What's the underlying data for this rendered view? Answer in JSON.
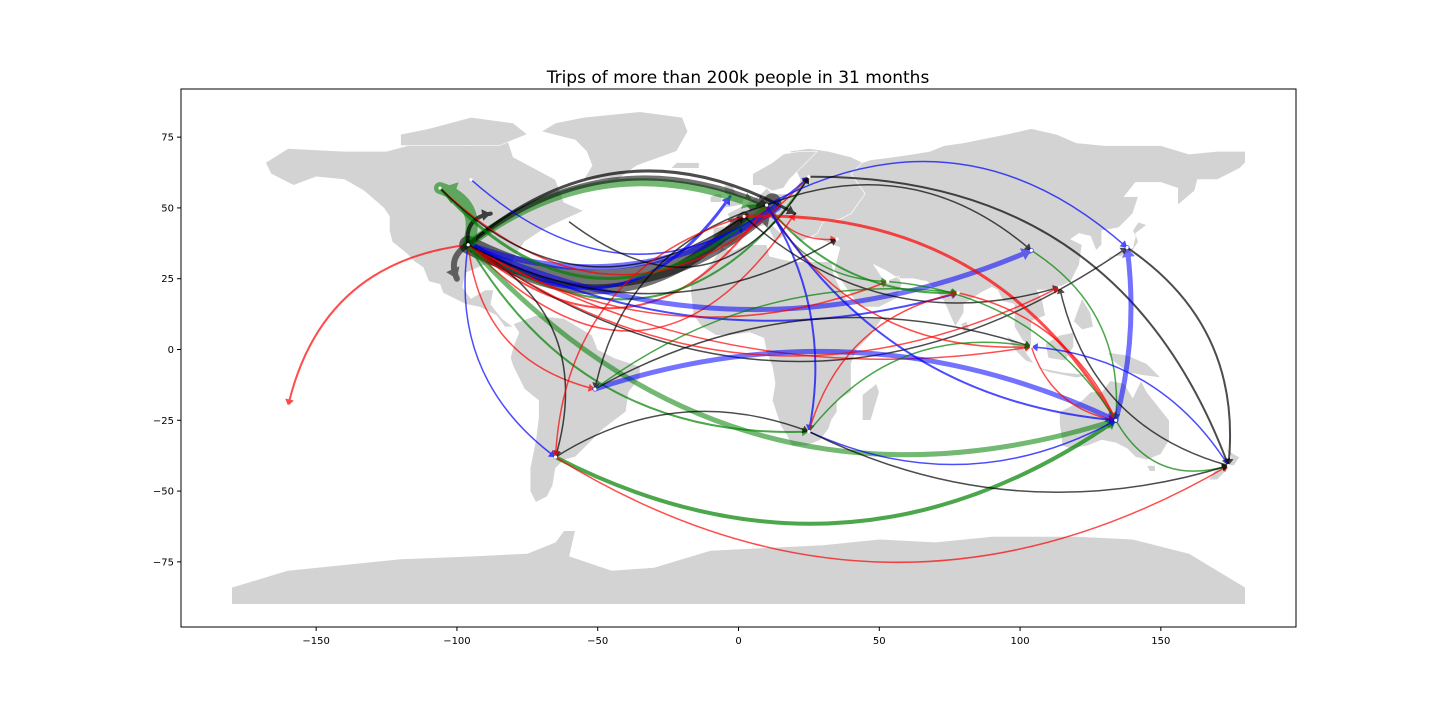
{
  "chart_data": {
    "type": "map-flow",
    "title": "Trips of more than 200k people in 31 months",
    "xlabel": "",
    "ylabel": "",
    "xlim": [
      -198,
      198
    ],
    "ylim": [
      -98,
      92
    ],
    "x_ticks": [
      -150,
      -100,
      -50,
      0,
      50,
      100,
      150
    ],
    "y_ticks": [
      -75,
      -50,
      -25,
      0,
      25,
      50,
      75
    ],
    "grid": false,
    "land_color": "#d3d3d3",
    "series_colors": [
      "#ff0000",
      "#0000ff",
      "#008000",
      "#000000"
    ],
    "hubs": [
      {
        "lon": -96,
        "lat": 37
      },
      {
        "lon": 10,
        "lat": 51
      },
      {
        "lon": 2,
        "lat": 47
      },
      {
        "lon": 134,
        "lat": -25
      },
      {
        "lon": 174,
        "lat": -41
      },
      {
        "lon": 138,
        "lat": 36
      },
      {
        "lon": 104,
        "lat": 35
      },
      {
        "lon": 104,
        "lat": 1
      },
      {
        "lon": 78,
        "lat": 20
      },
      {
        "lon": 25,
        "lat": -29
      },
      {
        "lon": -51,
        "lat": -14
      },
      {
        "lon": -65,
        "lat": -38
      },
      {
        "lon": -160,
        "lat": -20
      },
      {
        "lon": -106,
        "lat": 57
      },
      {
        "lon": 53,
        "lat": 24
      },
      {
        "lon": 35,
        "lat": 39
      },
      {
        "lon": 25,
        "lat": 61
      },
      {
        "lon": 114,
        "lat": 22
      },
      {
        "lon": -95,
        "lat": 60
      }
    ],
    "flows": [
      {
        "from": [
          -96,
          37
        ],
        "to": [
          12,
          52
        ],
        "color": "#000000",
        "width": 18,
        "bend": 0.35
      },
      {
        "from": [
          -96,
          37
        ],
        "to": [
          2,
          47
        ],
        "color": "#000000",
        "width": 10,
        "bend": 0.42
      },
      {
        "from": [
          -96,
          37
        ],
        "to": [
          14,
          50
        ],
        "color": "#0000ff",
        "width": 6,
        "bend": 0.25
      },
      {
        "from": [
          -96,
          37
        ],
        "to": [
          -3,
          54
        ],
        "color": "#0000ff",
        "width": 3,
        "bend": 0.5
      },
      {
        "from": [
          -96,
          37
        ],
        "to": [
          10,
          51
        ],
        "color": "#ff0000",
        "width": 2,
        "bend": 0.55
      },
      {
        "from": [
          -96,
          37
        ],
        "to": [
          25,
          61
        ],
        "color": "#008000",
        "width": 2,
        "bend": 0.5
      },
      {
        "from": [
          -96,
          37
        ],
        "to": [
          20,
          48
        ],
        "color": "#ff0000",
        "width": 1.5,
        "bend": 0.62
      },
      {
        "from": [
          -96,
          37
        ],
        "to": [
          6,
          51
        ],
        "color": "#008000",
        "width": 8,
        "bend": -0.28
      },
      {
        "from": [
          -96,
          37
        ],
        "to": [
          10,
          51
        ],
        "color": "#000000",
        "width": 5,
        "bend": -0.3
      },
      {
        "from": [
          -96,
          37
        ],
        "to": [
          20,
          48
        ],
        "color": "#000000",
        "width": 3,
        "bend": -0.35
      },
      {
        "from": [
          -96,
          37
        ],
        "to": [
          134,
          -25
        ],
        "color": "#008000",
        "width": 5,
        "bend": 0.32
      },
      {
        "from": [
          -96,
          37
        ],
        "to": [
          104,
          35
        ],
        "color": "#0000ff",
        "width": 5,
        "bend": 0.22
      },
      {
        "from": [
          -96,
          37
        ],
        "to": [
          78,
          20
        ],
        "color": "#0000ff",
        "width": 2,
        "bend": 0.2
      },
      {
        "from": [
          -96,
          37
        ],
        "to": [
          104,
          1
        ],
        "color": "#ff0000",
        "width": 1.5,
        "bend": 0.18
      },
      {
        "from": [
          -96,
          37
        ],
        "to": [
          25,
          -29
        ],
        "color": "#008000",
        "width": 2,
        "bend": 0.3
      },
      {
        "from": [
          -96,
          37
        ],
        "to": [
          -51,
          -14
        ],
        "color": "#ff0000",
        "width": 1.5,
        "bend": 0.35
      },
      {
        "from": [
          -96,
          37
        ],
        "to": [
          -65,
          -38
        ],
        "color": "#0000ff",
        "width": 1.5,
        "bend": 0.3
      },
      {
        "from": [
          -96,
          37
        ],
        "to": [
          -65,
          -38
        ],
        "color": "#000000",
        "width": 1.5,
        "bend": -0.4
      },
      {
        "from": [
          -96,
          37
        ],
        "to": [
          53,
          24
        ],
        "color": "#ff0000",
        "width": 1.5,
        "bend": 0.25
      },
      {
        "from": [
          -96,
          37
        ],
        "to": [
          138,
          36
        ],
        "color": "#000000",
        "width": 1.5,
        "bend": 0.35
      },
      {
        "from": [
          -96,
          37
        ],
        "to": [
          -160,
          -20
        ],
        "color": "#ff0000",
        "width": 2,
        "bend": 0.35
      },
      {
        "from": [
          -96,
          37
        ],
        "to": [
          -106,
          57
        ],
        "color": "#008000",
        "width": 12,
        "bend": 0.5
      },
      {
        "from": [
          -96,
          37
        ],
        "to": [
          -100,
          25
        ],
        "color": "#000000",
        "width": 6,
        "bend": 0.45
      },
      {
        "from": [
          -96,
          37
        ],
        "to": [
          -88,
          48
        ],
        "color": "#000000",
        "width": 4,
        "bend": -0.5
      },
      {
        "from": [
          -106,
          57
        ],
        "to": [
          10,
          51
        ],
        "color": "#008000",
        "width": 3,
        "bend": 0.5
      },
      {
        "from": [
          -106,
          57
        ],
        "to": [
          25,
          61
        ],
        "color": "#ff0000",
        "width": 1.5,
        "bend": 0.5
      },
      {
        "from": [
          -106,
          57
        ],
        "to": [
          2,
          47
        ],
        "color": "#000000",
        "width": 1.5,
        "bend": 0.42
      },
      {
        "from": [
          -95,
          60
        ],
        "to": [
          25,
          61
        ],
        "color": "#0000ff",
        "width": 1.5,
        "bend": 0.45
      },
      {
        "from": [
          -60,
          45
        ],
        "to": [
          25,
          61
        ],
        "color": "#000000",
        "width": 1.5,
        "bend": 0.55
      },
      {
        "from": [
          2,
          47
        ],
        "to": [
          134,
          -25
        ],
        "color": "#ff0000",
        "width": 3,
        "bend": -0.3
      },
      {
        "from": [
          10,
          51
        ],
        "to": [
          138,
          36
        ],
        "color": "#0000ff",
        "width": 1.5,
        "bend": -0.35
      },
      {
        "from": [
          10,
          51
        ],
        "to": [
          104,
          35
        ],
        "color": "#000000",
        "width": 1.5,
        "bend": -0.3
      },
      {
        "from": [
          25,
          61
        ],
        "to": [
          174,
          -41
        ],
        "color": "#000000",
        "width": 2,
        "bend": -0.35
      },
      {
        "from": [
          10,
          51
        ],
        "to": [
          78,
          20
        ],
        "color": "#008000",
        "width": 2,
        "bend": 0.25
      },
      {
        "from": [
          10,
          51
        ],
        "to": [
          53,
          24
        ],
        "color": "#008000",
        "width": 1.5,
        "bend": 0.3
      },
      {
        "from": [
          10,
          51
        ],
        "to": [
          25,
          -29
        ],
        "color": "#0000ff",
        "width": 2,
        "bend": -0.2
      },
      {
        "from": [
          10,
          51
        ],
        "to": [
          104,
          1
        ],
        "color": "#ff0000",
        "width": 1.5,
        "bend": 0.3
      },
      {
        "from": [
          2,
          47
        ],
        "to": [
          114,
          22
        ],
        "color": "#000000",
        "width": 1.5,
        "bend": 0.28
      },
      {
        "from": [
          10,
          51
        ],
        "to": [
          -51,
          -14
        ],
        "color": "#000000",
        "width": 1.5,
        "bend": 0.3
      },
      {
        "from": [
          2,
          47
        ],
        "to": [
          -65,
          -38
        ],
        "color": "#ff0000",
        "width": 1.5,
        "bend": 0.35
      },
      {
        "from": [
          10,
          51
        ],
        "to": [
          35,
          39
        ],
        "color": "#ff0000",
        "width": 1.5,
        "bend": 0.3
      },
      {
        "from": [
          -51,
          -14
        ],
        "to": [
          134,
          -25
        ],
        "color": "#0000ff",
        "width": 5,
        "bend": -0.2
      },
      {
        "from": [
          -65,
          -38
        ],
        "to": [
          134,
          -25
        ],
        "color": "#008000",
        "width": 4,
        "bend": 0.3
      },
      {
        "from": [
          -51,
          -14
        ],
        "to": [
          104,
          1
        ],
        "color": "#000000",
        "width": 1.5,
        "bend": -0.22
      },
      {
        "from": [
          -51,
          -14
        ],
        "to": [
          78,
          20
        ],
        "color": "#008000",
        "width": 1.5,
        "bend": -0.2
      },
      {
        "from": [
          -65,
          -38
        ],
        "to": [
          25,
          -29
        ],
        "color": "#000000",
        "width": 1.5,
        "bend": -0.25
      },
      {
        "from": [
          -65,
          -38
        ],
        "to": [
          174,
          -41
        ],
        "color": "#ff0000",
        "width": 1.5,
        "bend": 0.3
      },
      {
        "from": [
          25,
          -29
        ],
        "to": [
          134,
          -25
        ],
        "color": "#0000ff",
        "width": 1.5,
        "bend": 0.25
      },
      {
        "from": [
          25,
          -29
        ],
        "to": [
          104,
          1
        ],
        "color": "#008000",
        "width": 1.5,
        "bend": -0.3
      },
      {
        "from": [
          25,
          -29
        ],
        "to": [
          78,
          20
        ],
        "color": "#ff0000",
        "width": 1.5,
        "bend": -0.3
      },
      {
        "from": [
          53,
          24
        ],
        "to": [
          134,
          -25
        ],
        "color": "#008000",
        "width": 1.5,
        "bend": -0.25
      },
      {
        "from": [
          78,
          20
        ],
        "to": [
          134,
          -25
        ],
        "color": "#ff0000",
        "width": 1.5,
        "bend": -0.25
      },
      {
        "from": [
          104,
          35
        ],
        "to": [
          134,
          -25
        ],
        "color": "#008000",
        "width": 1.5,
        "bend": -0.3
      },
      {
        "from": [
          104,
          1
        ],
        "to": [
          134,
          -25
        ],
        "color": "#ff0000",
        "width": 1.5,
        "bend": 0.3
      },
      {
        "from": [
          134,
          -25
        ],
        "to": [
          138,
          36
        ],
        "color": "#0000ff",
        "width": 5,
        "bend": 0.1
      },
      {
        "from": [
          134,
          -25
        ],
        "to": [
          174,
          -41
        ],
        "color": "#008000",
        "width": 1.5,
        "bend": 0.4
      },
      {
        "from": [
          174,
          -41
        ],
        "to": [
          114,
          22
        ],
        "color": "#000000",
        "width": 1.5,
        "bend": -0.3
      },
      {
        "from": [
          138,
          36
        ],
        "to": [
          174,
          -41
        ],
        "color": "#000000",
        "width": 2,
        "bend": -0.3
      },
      {
        "from": [
          174,
          -41
        ],
        "to": [
          104,
          1
        ],
        "color": "#0000ff",
        "width": 1.5,
        "bend": 0.25
      },
      {
        "from": [
          25,
          -29
        ],
        "to": [
          174,
          -41
        ],
        "color": "#000000",
        "width": 1.5,
        "bend": 0.2
      },
      {
        "from": [
          10,
          51
        ],
        "to": [
          134,
          -25
        ],
        "color": "#0000ff",
        "width": 2,
        "bend": 0.25
      },
      {
        "from": [
          -96,
          37
        ],
        "to": [
          114,
          22
        ],
        "color": "#ff0000",
        "width": 1.5,
        "bend": 0.3
      },
      {
        "from": [
          -96,
          37
        ],
        "to": [
          35,
          39
        ],
        "color": "#000000",
        "width": 1.5,
        "bend": 0.28
      }
    ]
  }
}
